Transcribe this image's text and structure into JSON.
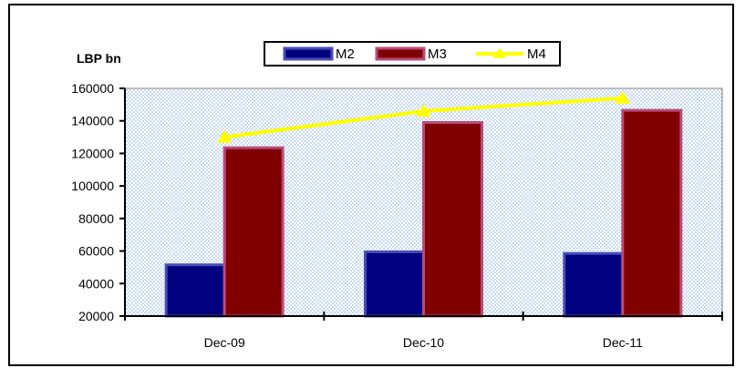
{
  "chart_data": {
    "type": "bar",
    "title": "",
    "xlabel": "",
    "ylabel": "LBP bn",
    "categories": [
      "Dec-09",
      "Dec-10",
      "Dec-11"
    ],
    "ylim": [
      20000,
      160000
    ],
    "yticks": [
      20000,
      40000,
      60000,
      80000,
      100000,
      120000,
      140000,
      160000
    ],
    "grid": false,
    "background_pattern": "dotted",
    "legend": "top-center",
    "series": [
      {
        "name": "M2",
        "type": "bar",
        "color": "#000080",
        "values": [
          51500,
          59500,
          58500
        ]
      },
      {
        "name": "M3",
        "type": "bar",
        "color": "#800000",
        "values": [
          123500,
          139000,
          146500
        ]
      },
      {
        "name": "M4",
        "type": "line",
        "marker": "triangle",
        "color": "#FFFF00",
        "values": [
          130000,
          146000,
          154000
        ]
      }
    ]
  }
}
